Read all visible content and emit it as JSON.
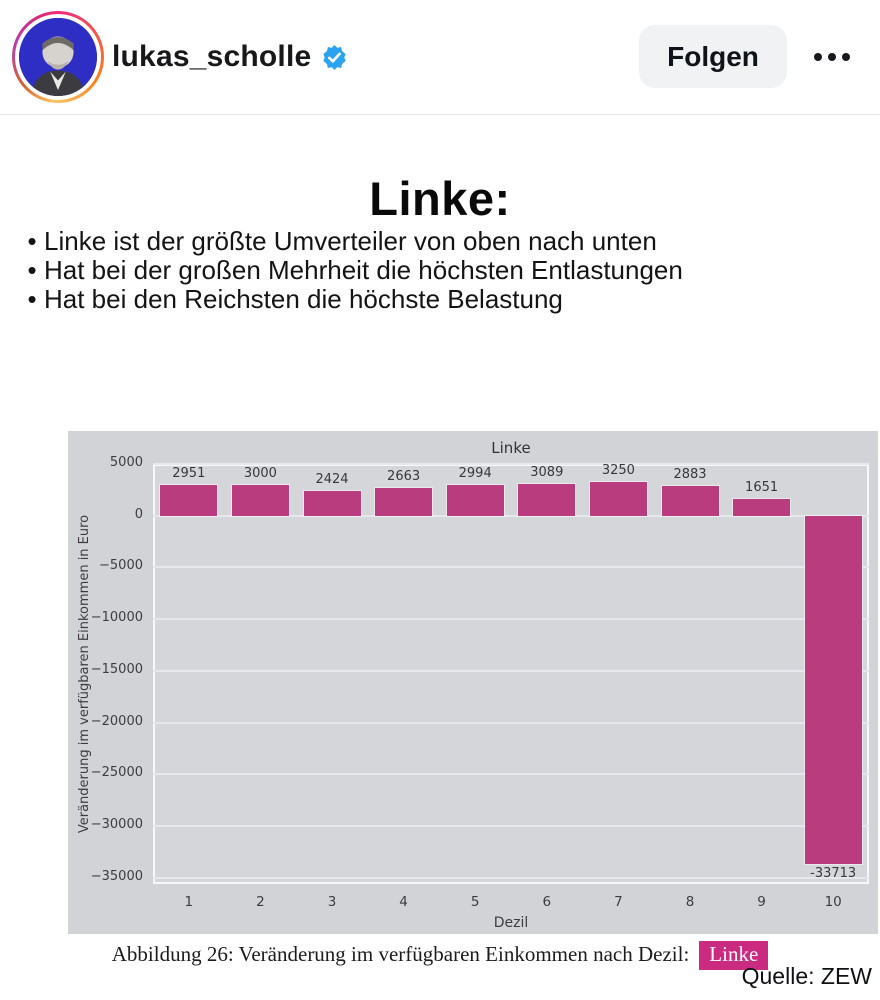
{
  "header": {
    "avatar_icon": "profile-photo",
    "username": "lukas_scholle",
    "verified_icon": "verified-badge-icon",
    "verified_color": "#29a3ef",
    "follow_label": "Folgen",
    "more_icon": "more-options-icon"
  },
  "post": {
    "title": "Linke:",
    "bullets": [
      "Linke ist der größte Umverteiler von oben nach unten",
      "Hat bei der großen Mehrheit die höchsten Entlastungen",
      "Hat bei den Reichsten die höchste Belastung"
    ]
  },
  "chart_data": {
    "type": "bar",
    "title": "Linke",
    "xlabel": "Dezil",
    "ylabel": "Veränderung im verfügbaren Einkommen in Euro",
    "categories": [
      "1",
      "2",
      "3",
      "4",
      "5",
      "6",
      "7",
      "8",
      "9",
      "10"
    ],
    "values": [
      2951,
      3000,
      2424,
      2663,
      2994,
      3089,
      3250,
      2883,
      1651,
      -33713
    ],
    "ylim": [
      -35600,
      5000
    ],
    "yticks": [
      5000,
      0,
      -5000,
      -10000,
      -15000,
      -20000,
      -25000,
      -30000,
      -35000
    ],
    "grid": true,
    "legend": "none",
    "bar_color": "#b93c7e",
    "figure_bg": "#d2d3d6",
    "plot_bg": "#d5d6d9"
  },
  "caption": {
    "prefix": "Abbildung 26: Veränderung im verfügbaren Einkommen nach Dezil:",
    "badge_label": "Linke",
    "badge_color": "#ca2a80"
  },
  "source_label": "Quelle: ZEW"
}
